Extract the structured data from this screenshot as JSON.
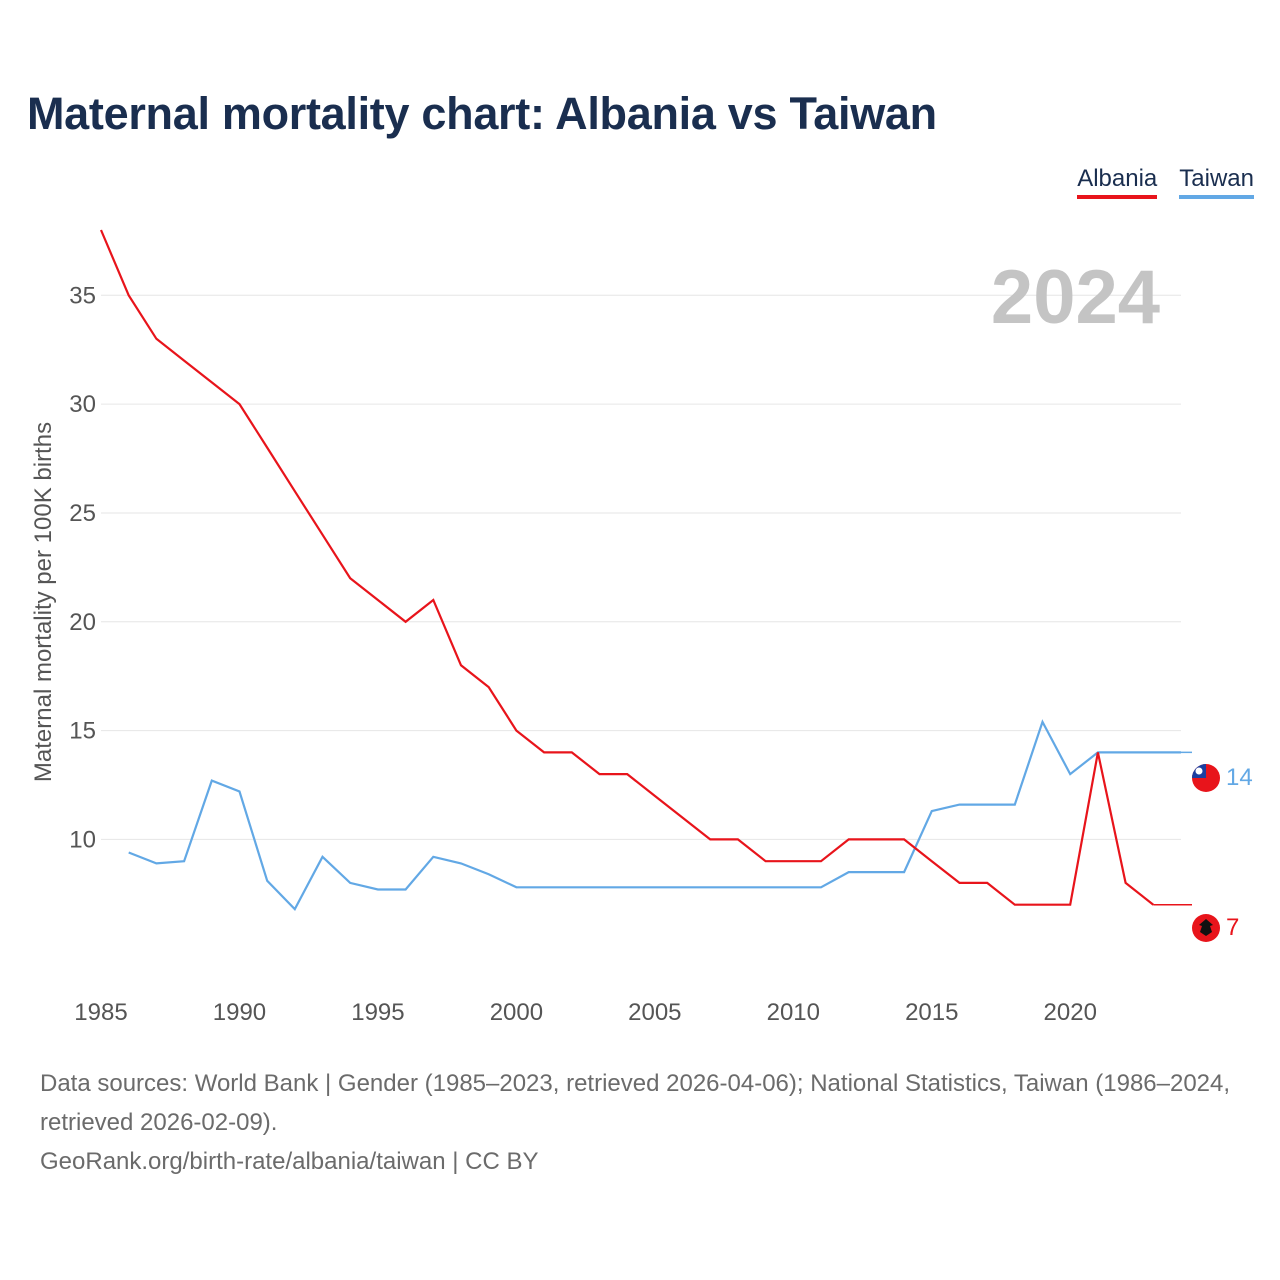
{
  "page": {
    "title": "Maternal mortality chart: Albania vs Taiwan",
    "year_watermark": "2024",
    "sources": "Data sources: World Bank | Gender (1985–2023, retrieved 2026-04-06); National Statistics, Taiwan (1986–2024, retrieved 2026-02-09).",
    "credit": "GeoRank.org/birth-rate/albania/taiwan | CC BY"
  },
  "colors": {
    "albania": "#e8141b",
    "taiwan": "#62a8e5",
    "grid": "#e6e6e6",
    "axis_text": "#555555",
    "watermark": "#c4c4c4"
  },
  "chart_data": {
    "type": "line",
    "title": "Maternal mortality chart: Albania vs Taiwan",
    "xlabel": "",
    "ylabel": "Maternal mortality per 100K births",
    "xlim": [
      1985,
      2024
    ],
    "ylim": [
      4,
      38
    ],
    "x_ticks": [
      1985,
      1990,
      1995,
      2000,
      2005,
      2010,
      2015,
      2020
    ],
    "y_ticks": [
      10,
      15,
      20,
      25,
      30,
      35
    ],
    "grid": true,
    "legend": "top-right",
    "series": [
      {
        "name": "Albania",
        "color": "#e8141b",
        "end_label": "7",
        "end_icon": "albania-flag-icon",
        "x": [
          1985,
          1986,
          1987,
          1988,
          1989,
          1990,
          1991,
          1992,
          1993,
          1994,
          1995,
          1996,
          1997,
          1998,
          1999,
          2000,
          2001,
          2002,
          2003,
          2004,
          2005,
          2006,
          2007,
          2008,
          2009,
          2010,
          2011,
          2012,
          2013,
          2014,
          2015,
          2016,
          2017,
          2018,
          2019,
          2020,
          2021,
          2022,
          2023
        ],
        "y": [
          38,
          35,
          33,
          32,
          31,
          30,
          28,
          26,
          24,
          22,
          21,
          20,
          21,
          18,
          17,
          15,
          14,
          14,
          13,
          13,
          12,
          11,
          10,
          10,
          9,
          9,
          9,
          10,
          10,
          10,
          9,
          8,
          8,
          7,
          7,
          7,
          14,
          8,
          7
        ]
      },
      {
        "name": "Taiwan",
        "color": "#62a8e5",
        "end_label": "14",
        "end_icon": "taiwan-flag-icon",
        "x": [
          1986,
          1987,
          1988,
          1989,
          1990,
          1991,
          1992,
          1993,
          1994,
          1995,
          1996,
          1997,
          1998,
          1999,
          2000,
          2001,
          2002,
          2003,
          2004,
          2005,
          2006,
          2007,
          2008,
          2009,
          2010,
          2011,
          2012,
          2013,
          2014,
          2015,
          2016,
          2017,
          2018,
          2019,
          2020,
          2021,
          2022,
          2023,
          2024
        ],
        "y": [
          9.4,
          8.9,
          9.0,
          12.7,
          12.2,
          8.1,
          6.8,
          9.2,
          8.0,
          7.7,
          7.7,
          9.2,
          8.9,
          8.4,
          7.8,
          7.8,
          7.8,
          7.8,
          7.8,
          7.8,
          7.8,
          7.8,
          7.8,
          7.8,
          7.8,
          7.8,
          8.5,
          8.5,
          8.5,
          11.3,
          11.6,
          11.6,
          11.6,
          15.4,
          13.0,
          14.0,
          14.0,
          14.0,
          14.0
        ]
      }
    ]
  }
}
